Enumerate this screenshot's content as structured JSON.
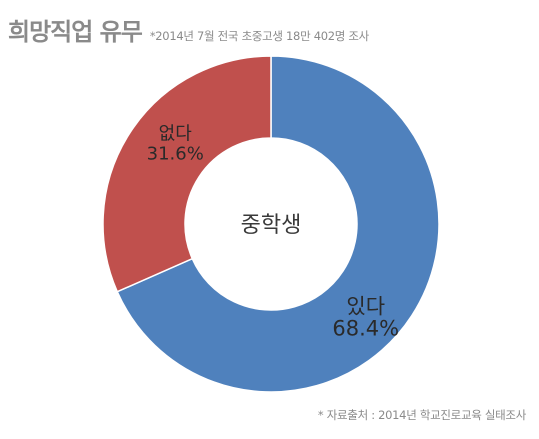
{
  "header": {
    "title": "희망직업 유무",
    "subtitle": "*2014년 7월 전국 초중고생 18만 402명 조사"
  },
  "footer": {
    "source": "* 자료출처 : 2014년 학교진로교육 실태조사"
  },
  "chart_data": {
    "type": "pie",
    "style": "donut",
    "center_label": "중학생",
    "categories": [
      "있다",
      "없다"
    ],
    "values": [
      68.4,
      31.6
    ],
    "value_labels": [
      "68.4%",
      "31.6%"
    ],
    "colors": [
      "#4F81BD",
      "#C0504D"
    ],
    "legend": false
  }
}
